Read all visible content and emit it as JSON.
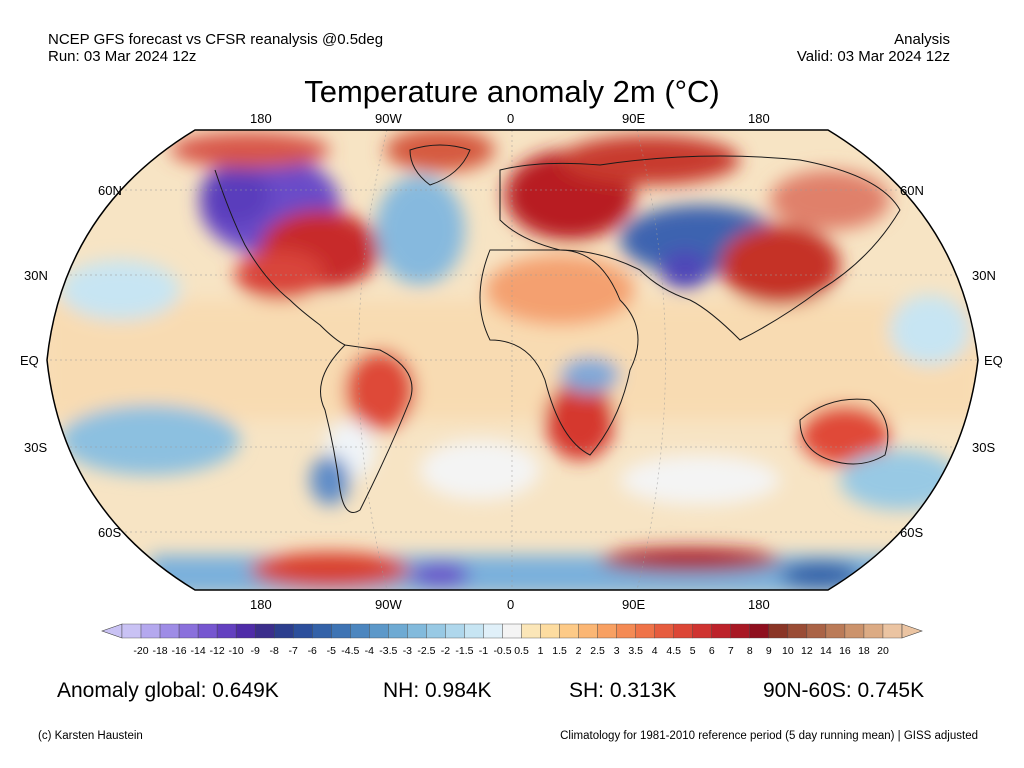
{
  "header": {
    "left_line1": "NCEP GFS forecast vs CFSR reanalysis @0.5deg",
    "left_line2": "Run: 03 Mar 2024 12z",
    "right_line1": "Analysis",
    "right_line2": "Valid: 03 Mar 2024 12z"
  },
  "title": "Temperature anomaly 2m (°C)",
  "map": {
    "projection": "Robinson",
    "lon_labels": [
      "180",
      "90W",
      "0",
      "90E",
      "180"
    ],
    "lat_labels_left": [
      "60N",
      "30N",
      "EQ",
      "30S",
      "60S"
    ],
    "lat_labels_right": [
      "60N",
      "30N",
      "EQ",
      "30S",
      "60S"
    ]
  },
  "colorbar": {
    "ticks": [
      "-20",
      "-18",
      "-16",
      "-14",
      "-12",
      "-10",
      "-9",
      "-8",
      "-7",
      "-6",
      "-5",
      "-4.5",
      "-4",
      "-3.5",
      "-3",
      "-2.5",
      "-2",
      "-1.5",
      "-1",
      "-0.5",
      "0.5",
      "1",
      "1.5",
      "2",
      "2.5",
      "3",
      "3.5",
      "4",
      "4.5",
      "5",
      "6",
      "7",
      "8",
      "9",
      "10",
      "12",
      "14",
      "16",
      "18",
      "20"
    ],
    "colors": [
      "#c9c2f4",
      "#b4a8ee",
      "#9e8ce6",
      "#8a70dc",
      "#7656d0",
      "#6340c0",
      "#4f2ca8",
      "#3b2e8c",
      "#2c3e8e",
      "#2c4f9c",
      "#3462a8",
      "#3e74b4",
      "#4c86bf",
      "#5c98c9",
      "#6eaad3",
      "#82badc",
      "#98c9e4",
      "#afd7ec",
      "#c7e5f3",
      "#e0f0f9",
      "#f4f4f4",
      "#fbe6b8",
      "#fddca0",
      "#fdca87",
      "#fbb674",
      "#f8a062",
      "#f48a54",
      "#ef7348",
      "#e65c3e",
      "#dc4636",
      "#cf3330",
      "#bd222a",
      "#a81824",
      "#8f0f1e",
      "#8a3526",
      "#9a4c35",
      "#aa6346",
      "#bb7b58",
      "#cc936c",
      "#dcab84",
      "#ebc4a2"
    ]
  },
  "stats": {
    "global": "Anomaly global: 0.649K",
    "nh": "NH: 0.984K",
    "sh": "SH: 0.313K",
    "arctic": "90N-60S: 0.745K"
  },
  "footer": {
    "credit": "(c) Karsten Haustein",
    "note": "Climatology for 1981-2010 reference period (5 day running mean) | GISS adjusted"
  }
}
